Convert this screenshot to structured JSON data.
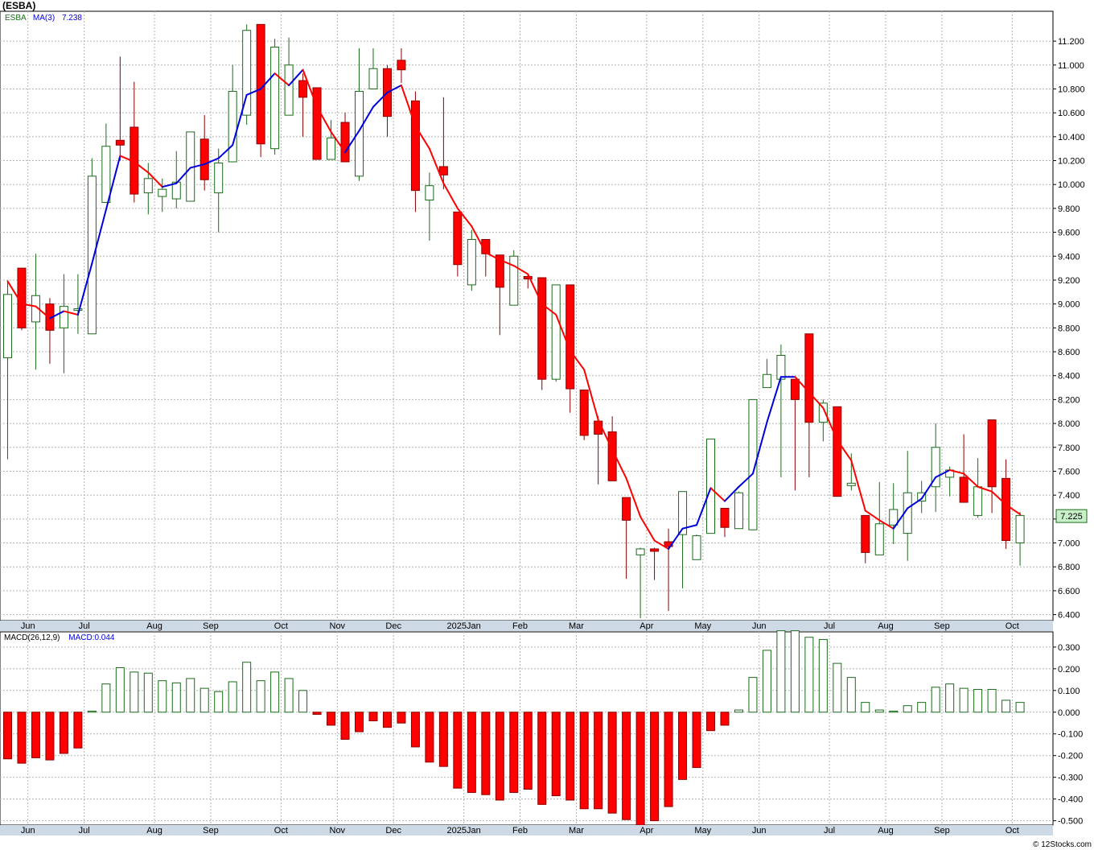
{
  "ticker": "(ESBA)",
  "watermark": "© 12Stocks.com",
  "price_legend": {
    "symbol": "ESBA",
    "ma_label": "MA(3)",
    "ma_value": "7.238"
  },
  "macd_legend": {
    "label": "MACD(26,12,9)",
    "value_label": "MACD:0.044"
  },
  "last_price": "7.225",
  "colors": {
    "up": "#1a6b1a",
    "down": "#ff0000",
    "ma_rising": "#0000dd",
    "ma_falling": "#ff0000",
    "grid": "#b4b4b4",
    "axis_band": "#cdd9e5",
    "price_box": "#c8f0c8"
  },
  "chart_data": [
    {
      "type": "candlestick",
      "title": "(ESBA)",
      "yticks": [
        "6.400",
        "6.600",
        "6.800",
        "7.000",
        "7.200",
        "7.400",
        "7.600",
        "7.800",
        "8.000",
        "8.200",
        "8.400",
        "8.600",
        "8.800",
        "9.000",
        "9.200",
        "9.400",
        "9.600",
        "9.800",
        "10.000",
        "10.200",
        "10.400",
        "10.600",
        "10.800",
        "11.000",
        "11.200"
      ],
      "ylim": [
        6.35,
        11.45
      ],
      "xticks": [
        {
          "label": "Jun",
          "i": 1.1
        },
        {
          "label": "Jul",
          "i": 5.1
        },
        {
          "label": "Aug",
          "i": 10.1
        },
        {
          "label": "Sep",
          "i": 14.1
        },
        {
          "label": "Oct",
          "i": 19.1
        },
        {
          "label": "Nov",
          "i": 23.1
        },
        {
          "label": "Dec",
          "i": 27.1
        },
        {
          "label": "2025Jan",
          "i": 32.1
        },
        {
          "label": "Feb",
          "i": 36.1
        },
        {
          "label": "Mar",
          "i": 40.1
        },
        {
          "label": "Apr",
          "i": 45.1
        },
        {
          "label": "May",
          "i": 49.1
        },
        {
          "label": "Jun",
          "i": 53.1
        },
        {
          "label": "Jul",
          "i": 58.1
        },
        {
          "label": "Aug",
          "i": 62.1
        },
        {
          "label": "Sep",
          "i": 66.1
        },
        {
          "label": "Oct",
          "i": 71.1
        }
      ],
      "candles": [
        [
          8.55,
          9.08,
          9.18,
          7.7
        ],
        [
          9.3,
          8.8,
          9.3,
          8.78
        ],
        [
          8.85,
          9.07,
          9.42,
          8.45
        ],
        [
          9.0,
          8.78,
          9.05,
          8.5
        ],
        [
          8.8,
          8.98,
          9.25,
          8.42
        ],
        [
          8.96,
          8.96,
          9.25,
          8.75
        ],
        [
          8.75,
          10.07,
          10.22,
          8.75
        ],
        [
          9.85,
          10.32,
          10.51,
          9.85
        ],
        [
          10.37,
          10.33,
          11.07,
          10.2
        ],
        [
          10.48,
          9.92,
          10.86,
          9.85
        ],
        [
          9.93,
          10.05,
          10.18,
          9.75
        ],
        [
          9.9,
          9.96,
          10.05,
          9.77
        ],
        [
          9.88,
          10.02,
          10.28,
          9.8
        ],
        [
          9.86,
          10.44,
          10.44,
          9.86
        ],
        [
          10.38,
          10.04,
          10.58,
          9.95
        ],
        [
          9.93,
          10.18,
          10.3,
          9.6
        ],
        [
          10.19,
          10.78,
          11.0,
          10.19
        ],
        [
          10.58,
          11.29,
          11.34,
          10.5
        ],
        [
          11.34,
          10.34,
          11.34,
          10.23
        ],
        [
          10.3,
          11.15,
          11.22,
          10.25
        ],
        [
          10.58,
          11.0,
          11.23,
          10.58
        ],
        [
          10.87,
          10.73,
          10.93,
          10.4
        ],
        [
          10.81,
          10.21,
          10.81,
          10.21
        ],
        [
          10.21,
          10.39,
          10.54,
          10.21
        ],
        [
          10.52,
          10.19,
          10.6,
          10.19
        ],
        [
          10.07,
          10.78,
          11.14,
          10.03
        ],
        [
          10.8,
          10.97,
          11.14,
          10.8
        ],
        [
          10.97,
          10.57,
          11.0,
          10.4
        ],
        [
          11.04,
          10.96,
          11.14,
          10.85
        ],
        [
          10.7,
          9.95,
          10.78,
          9.77
        ],
        [
          9.87,
          9.99,
          10.1,
          9.53
        ],
        [
          10.15,
          10.08,
          10.73,
          9.96
        ],
        [
          9.77,
          9.33,
          9.77,
          9.23
        ],
        [
          9.16,
          9.54,
          9.62,
          9.11
        ],
        [
          9.54,
          9.42,
          9.54,
          9.23
        ],
        [
          9.41,
          9.14,
          9.41,
          8.74
        ],
        [
          8.99,
          9.4,
          9.45,
          8.99
        ],
        [
          9.23,
          9.21,
          9.25,
          9.13
        ],
        [
          9.22,
          8.37,
          9.22,
          8.28
        ],
        [
          8.37,
          9.16,
          9.16,
          8.35
        ],
        [
          9.16,
          8.29,
          9.16,
          8.09
        ],
        [
          8.28,
          7.9,
          8.28,
          7.86
        ],
        [
          8.02,
          7.91,
          8.06,
          7.49
        ],
        [
          7.93,
          7.52,
          8.06,
          7.52
        ],
        [
          7.38,
          7.19,
          7.38,
          6.7
        ],
        [
          6.9,
          6.95,
          6.96,
          6.37
        ],
        [
          6.95,
          6.93,
          6.96,
          6.69
        ],
        [
          7.01,
          6.97,
          7.12,
          6.43
        ],
        [
          7.07,
          7.43,
          7.43,
          6.62
        ],
        [
          6.86,
          7.06,
          7.07,
          6.86
        ],
        [
          7.08,
          7.87,
          7.87,
          7.08
        ],
        [
          7.29,
          7.13,
          7.29,
          7.05
        ],
        [
          7.12,
          7.42,
          7.43,
          7.12
        ],
        [
          7.11,
          8.2,
          8.2,
          7.11
        ],
        [
          8.3,
          8.41,
          8.54,
          8.3
        ],
        [
          8.37,
          8.57,
          8.66,
          7.55
        ],
        [
          8.37,
          8.2,
          8.37,
          7.44
        ],
        [
          8.75,
          8.01,
          8.75,
          7.55
        ],
        [
          8.01,
          8.17,
          8.2,
          7.85
        ],
        [
          8.14,
          7.39,
          8.14,
          7.39
        ],
        [
          7.48,
          7.5,
          7.75,
          7.44
        ],
        [
          7.23,
          6.92,
          7.23,
          6.83
        ],
        [
          6.9,
          7.16,
          7.51,
          6.9
        ],
        [
          7.15,
          7.28,
          7.5,
          6.99
        ],
        [
          7.08,
          7.42,
          7.77,
          6.85
        ],
        [
          7.35,
          7.42,
          7.52,
          7.25
        ],
        [
          7.47,
          7.8,
          8.0,
          7.26
        ],
        [
          7.55,
          7.61,
          7.64,
          7.39
        ],
        [
          7.55,
          7.34,
          7.91,
          7.34
        ],
        [
          7.23,
          7.47,
          7.71,
          7.21
        ],
        [
          8.03,
          7.47,
          8.03,
          7.25
        ],
        [
          7.54,
          7.02,
          7.7,
          6.95
        ],
        [
          7.0,
          7.23,
          7.26,
          6.81
        ]
      ],
      "ma3": [
        9.19,
        9.0,
        8.98,
        8.88,
        8.94,
        8.91,
        9.34,
        9.79,
        10.24,
        10.19,
        10.1,
        9.98,
        10.01,
        10.14,
        10.17,
        10.22,
        10.33,
        10.75,
        10.8,
        10.93,
        10.83,
        10.96,
        10.65,
        10.44,
        10.27,
        10.45,
        10.65,
        10.77,
        10.83,
        10.49,
        10.3,
        10.01,
        9.8,
        9.65,
        9.43,
        9.37,
        9.32,
        9.25,
        9.0,
        8.91,
        8.61,
        8.45,
        8.03,
        7.78,
        7.54,
        7.22,
        7.02,
        6.95,
        7.12,
        7.15,
        7.46,
        7.35,
        7.47,
        7.58,
        8.01,
        8.39,
        8.39,
        8.26,
        8.13,
        7.86,
        7.69,
        7.27,
        7.19,
        7.12,
        7.29,
        7.37,
        7.55,
        7.61,
        7.58,
        7.47,
        7.43,
        7.32,
        7.24
      ]
    },
    {
      "type": "bar",
      "title": "MACD(26,12,9)",
      "yticks": [
        "-0.500",
        "-0.400",
        "-0.300",
        "-0.200",
        "-0.100",
        "0.000",
        "0.100",
        "0.200",
        "0.300"
      ],
      "ylim": [
        -0.52,
        0.37
      ],
      "values": [
        -0.215,
        -0.235,
        -0.21,
        -0.22,
        -0.19,
        -0.165,
        0.005,
        0.13,
        0.205,
        0.185,
        0.18,
        0.145,
        0.135,
        0.155,
        0.11,
        0.095,
        0.14,
        0.23,
        0.145,
        0.185,
        0.155,
        0.1,
        -0.01,
        -0.06,
        -0.125,
        -0.09,
        -0.04,
        -0.07,
        -0.05,
        -0.16,
        -0.23,
        -0.25,
        -0.35,
        -0.37,
        -0.38,
        -0.405,
        -0.37,
        -0.355,
        -0.425,
        -0.385,
        -0.405,
        -0.445,
        -0.445,
        -0.465,
        -0.495,
        -0.52,
        -0.5,
        -0.435,
        -0.31,
        -0.255,
        -0.085,
        -0.06,
        0.01,
        0.16,
        0.285,
        0.375,
        0.375,
        0.345,
        0.335,
        0.225,
        0.16,
        0.045,
        0.01,
        0.005,
        0.03,
        0.045,
        0.115,
        0.13,
        0.11,
        0.105,
        0.105,
        0.055,
        0.045
      ]
    }
  ]
}
